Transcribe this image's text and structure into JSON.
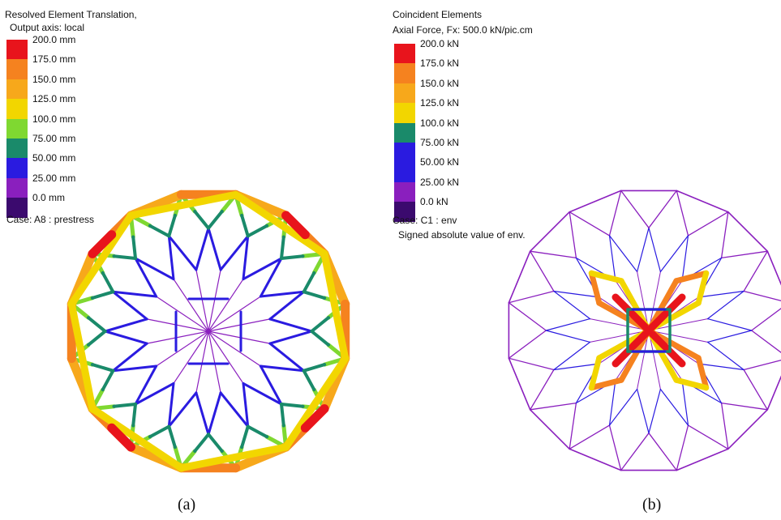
{
  "panel_a": {
    "title_line1": "Resolved Element Translation,",
    "title_line2": "Output axis: local",
    "legend": [
      {
        "label": "200.0 mm",
        "color": "#e8141c"
      },
      {
        "label": "175.0 mm",
        "color": "#f5821f"
      },
      {
        "label": "150.0 mm",
        "color": "#f7a81b"
      },
      {
        "label": "125.0 mm",
        "color": "#f2d600"
      },
      {
        "label": "100.0 mm",
        "color": "#7fd831"
      },
      {
        "label": "75.00 mm",
        "color": "#1a8a6a"
      },
      {
        "label": "50.00 mm",
        "color": "#2a1be0"
      },
      {
        "label": "25.00 mm",
        "color": "#8a1fbe"
      },
      {
        "label": "0.0 mm",
        "color": "#3b0a6e"
      }
    ],
    "case_text": "Case: A8 : prestress",
    "caption": "(a)"
  },
  "panel_b": {
    "title_line1": "Coincident Elements",
    "title_line2": "Axial Force, Fx: 500.0 kN/pic.cm",
    "legend": [
      {
        "label": "200.0 kN",
        "color": "#e8141c"
      },
      {
        "label": "175.0 kN",
        "color": "#f5821f"
      },
      {
        "label": "150.0 kN",
        "color": "#f7a81b"
      },
      {
        "label": "125.0 kN",
        "color": "#f2d600"
      },
      {
        "label": "100.0 kN",
        "color": "#1a8a6a"
      },
      {
        "label": "75.00 kN",
        "color": "#2a1be0"
      },
      {
        "label": "50.00 kN",
        "color": "#2a1be0"
      },
      {
        "label": "25.00 kN",
        "color": "#8a1fbe"
      },
      {
        "label": "0.0 kN",
        "color": "#3b0a6e"
      }
    ],
    "case_text": "Case: C1 : env",
    "note_text": "Signed absolute value of env.",
    "caption": "(b)"
  }
}
